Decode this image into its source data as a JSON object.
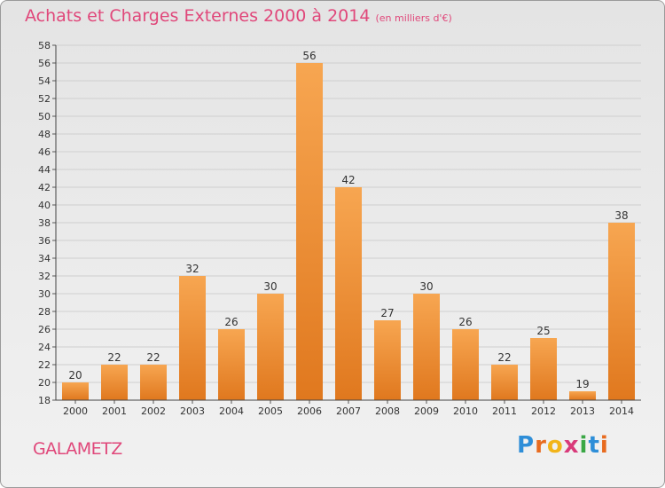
{
  "header": {
    "title": "Achats et Charges Externes 2000 à 2014",
    "subtitle": "(en milliers d'€)"
  },
  "footer": {
    "commune": "GALAMETZ",
    "logo_letters": [
      "P",
      "r",
      "o",
      "x",
      "i",
      "t",
      "i"
    ],
    "logo_colors": [
      "#2e8ed8",
      "#e86b1f",
      "#f2b419",
      "#d93a7a",
      "#3aa745",
      "#2e8ed8",
      "#e86b1f"
    ]
  },
  "colors": {
    "title": "#e0477a",
    "bar_light": "#f7a651",
    "bar_dark": "#e0781e",
    "grid": "#cfcfcf",
    "axis_text": "#333333"
  },
  "chart_data": {
    "type": "bar",
    "title": "Achats et Charges Externes 2000 à 2014",
    "subtitle": "(en milliers d'€)",
    "categories": [
      "2000",
      "2001",
      "2002",
      "2003",
      "2004",
      "2005",
      "2006",
      "2007",
      "2008",
      "2009",
      "2010",
      "2011",
      "2012",
      "2013",
      "2014"
    ],
    "values": [
      20,
      22,
      22,
      32,
      26,
      30,
      56,
      42,
      27,
      30,
      26,
      22,
      25,
      19,
      38
    ],
    "ylim": [
      18,
      58
    ],
    "ytick_step": 2,
    "grid": true,
    "data_labels": true
  }
}
